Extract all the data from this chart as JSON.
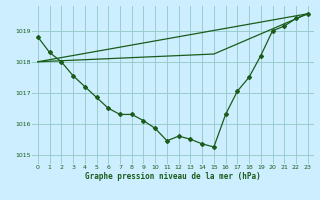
{
  "title": "Graphe pression niveau de la mer (hPa)",
  "bg_color": "#cceeff",
  "grid_color": "#99cccc",
  "line_color": "#1a5c1a",
  "xlim": [
    -0.5,
    23.5
  ],
  "ylim": [
    1014.7,
    1019.8
  ],
  "yticks": [
    1015,
    1016,
    1017,
    1018,
    1019
  ],
  "xticks": [
    0,
    1,
    2,
    3,
    4,
    5,
    6,
    7,
    8,
    9,
    10,
    11,
    12,
    13,
    14,
    15,
    16,
    17,
    18,
    19,
    20,
    21,
    22,
    23
  ],
  "series_main": {
    "x": [
      0,
      1,
      2,
      3,
      4,
      5,
      6,
      7,
      8,
      9,
      10,
      11,
      12,
      13,
      14,
      15,
      16,
      17,
      18,
      19,
      20,
      21,
      22,
      23
    ],
    "y": [
      1018.8,
      1018.3,
      1018.0,
      1017.55,
      1017.2,
      1016.85,
      1016.5,
      1016.3,
      1016.3,
      1016.1,
      1015.85,
      1015.45,
      1015.6,
      1015.5,
      1015.35,
      1015.25,
      1016.3,
      1017.05,
      1017.5,
      1018.2,
      1019.0,
      1019.15,
      1019.4,
      1019.55
    ]
  },
  "line_upper": {
    "x": [
      0,
      23
    ],
    "y": [
      1018.0,
      1019.55
    ]
  },
  "line_lower": {
    "x": [
      0,
      15,
      23
    ],
    "y": [
      1018.0,
      1018.25,
      1019.55
    ]
  }
}
